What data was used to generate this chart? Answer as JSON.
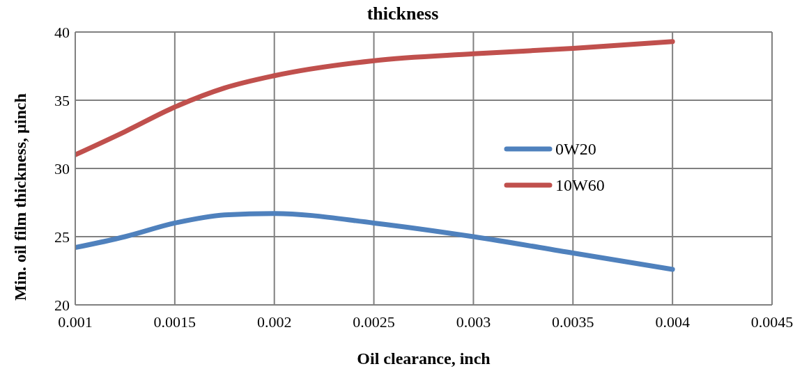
{
  "chart_data": {
    "type": "line",
    "title": "thickness",
    "xlabel": "Oil clearance, inch",
    "ylabel": "Min. oil film thickness, µinch",
    "x": [
      0.001,
      0.00125,
      0.0015,
      0.00175,
      0.002,
      0.0025,
      0.003,
      0.0035,
      0.004
    ],
    "series": [
      {
        "name": "0W20",
        "color": "#4f81bd",
        "values": [
          24.2,
          25.0,
          26.0,
          26.6,
          26.7,
          26.0,
          25.0,
          23.8,
          22.6
        ]
      },
      {
        "name": "10W60",
        "color": "#c0504d",
        "values": [
          31.0,
          32.7,
          34.5,
          35.9,
          36.8,
          37.9,
          38.4,
          38.8,
          39.3
        ]
      }
    ],
    "xlim": [
      0.001,
      0.0045
    ],
    "xticks": [
      0.001,
      0.0015,
      0.002,
      0.0025,
      0.003,
      0.0035,
      0.004,
      0.0045
    ],
    "ylim": [
      20,
      40
    ],
    "yticks": [
      20,
      25,
      30,
      35,
      40
    ],
    "grid": true,
    "legend": "right",
    "marker": "none",
    "line_style": "solid"
  }
}
